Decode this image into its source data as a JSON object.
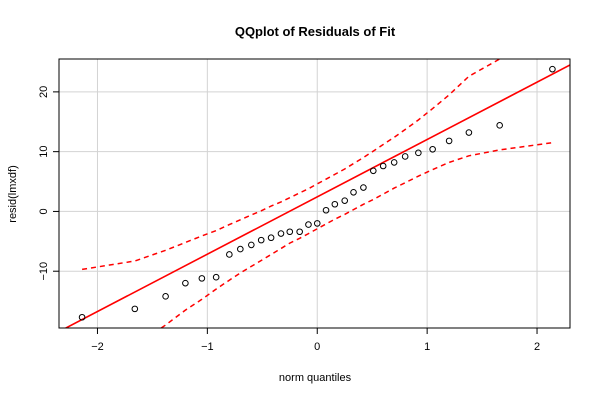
{
  "chart_data": {
    "type": "scatter",
    "title": "QQplot of Residuals of Fit",
    "xlabel": "norm quantiles",
    "ylabel": "resid(lmxdf)",
    "xlim": [
      -2.35,
      2.3
    ],
    "ylim": [
      -19.5,
      25.5
    ],
    "x_ticks": [
      -2,
      -1,
      0,
      1,
      2
    ],
    "y_ticks": [
      -10,
      0,
      10,
      20
    ],
    "x_tick_labels": [
      "−2",
      "−1",
      "0",
      "1",
      "2"
    ],
    "y_tick_labels": [
      "−10",
      "0",
      "10",
      "20"
    ],
    "grid": true,
    "colors": {
      "points": "#000000",
      "fit_line": "#ff0000",
      "envelope": "#ff0000",
      "grid": "#d3d3d3"
    },
    "points": {
      "name": "residuals",
      "x": [
        -2.14,
        -1.66,
        -1.38,
        -1.2,
        -1.05,
        -0.92,
        -0.8,
        -0.7,
        -0.6,
        -0.51,
        -0.42,
        -0.33,
        -0.25,
        -0.16,
        -0.08,
        0.0,
        0.08,
        0.16,
        0.25,
        0.33,
        0.42,
        0.51,
        0.6,
        0.7,
        0.8,
        0.92,
        1.05,
        1.2,
        1.38,
        1.66,
        2.14
      ],
      "y": [
        -17.7,
        -16.3,
        -14.2,
        -12.0,
        -11.2,
        -11.0,
        -7.2,
        -6.3,
        -5.6,
        -4.8,
        -4.4,
        -3.7,
        -3.4,
        -3.4,
        -2.2,
        -2.0,
        0.2,
        1.2,
        1.8,
        3.2,
        4.0,
        6.8,
        7.6,
        8.2,
        9.2,
        9.8,
        10.4,
        11.8,
        13.2,
        14.4,
        23.8
      ]
    },
    "fit_line": {
      "name": "qq line",
      "x": [
        -2.35,
        2.3
      ],
      "y": [
        -20.1,
        24.5
      ]
    },
    "envelope_upper": {
      "name": "upper band",
      "x": [
        -2.14,
        -1.66,
        -1.38,
        -1.2,
        -1.05,
        -0.92,
        -0.8,
        -0.7,
        -0.6,
        -0.51,
        -0.42,
        -0.33,
        -0.25,
        -0.16,
        -0.08,
        0.0,
        0.08,
        0.16,
        0.25,
        0.33,
        0.42,
        0.51,
        0.6,
        0.7,
        0.8,
        0.92,
        1.05,
        1.2,
        1.38,
        1.66,
        1.85
      ],
      "y": [
        -9.7,
        -8.3,
        -6.5,
        -5.2,
        -4.1,
        -3.2,
        -2.2,
        -1.4,
        -0.6,
        0.1,
        0.9,
        1.6,
        2.3,
        3.1,
        3.8,
        4.6,
        5.4,
        6.2,
        7.1,
        8.0,
        9.0,
        10.1,
        11.2,
        12.4,
        13.7,
        15.3,
        17.2,
        19.5,
        22.6,
        25.5,
        25.9
      ]
    },
    "envelope_lower": {
      "name": "lower band",
      "x": [
        -1.42,
        -1.38,
        -1.2,
        -1.05,
        -0.92,
        -0.8,
        -0.7,
        -0.6,
        -0.51,
        -0.42,
        -0.33,
        -0.25,
        -0.16,
        -0.08,
        0.0,
        0.08,
        0.16,
        0.25,
        0.33,
        0.42,
        0.51,
        0.6,
        0.7,
        0.8,
        0.92,
        1.05,
        1.2,
        1.38,
        1.66,
        2.14
      ],
      "y": [
        -19.5,
        -19.0,
        -16.5,
        -14.7,
        -13.0,
        -11.5,
        -10.3,
        -9.2,
        -8.2,
        -7.2,
        -6.2,
        -5.3,
        -4.5,
        -3.7,
        -2.9,
        -2.1,
        -1.3,
        -0.5,
        0.3,
        1.2,
        2.0,
        2.9,
        3.9,
        4.8,
        5.9,
        7.0,
        8.2,
        9.3,
        10.3,
        11.5
      ]
    }
  }
}
